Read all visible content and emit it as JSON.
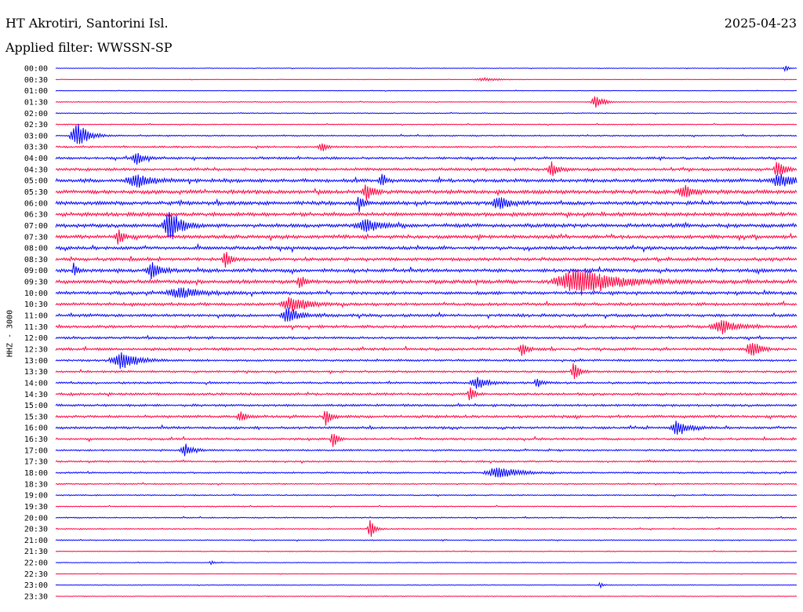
{
  "header": {
    "station": "HT Akrotiri, Santorini Isl.",
    "date": "2025-04-23",
    "filter": "Applied filter: WWSSN-SP"
  },
  "channel_label": "HHZ - 3000",
  "colors": {
    "trace_a": "#0000ff",
    "trace_b": "#ff0040",
    "text": "#000000",
    "background": "#ffffff"
  },
  "chart_data": {
    "type": "line",
    "subtype": "helicorder",
    "rows": [
      "00:00",
      "00:30",
      "01:00",
      "01:30",
      "02:00",
      "02:30",
      "03:00",
      "03:30",
      "04:00",
      "04:30",
      "05:00",
      "05:30",
      "06:00",
      "06:30",
      "07:00",
      "07:30",
      "08:00",
      "08:30",
      "09:00",
      "09:30",
      "10:00",
      "10:30",
      "11:00",
      "11:30",
      "12:00",
      "12:30",
      "13:00",
      "13:30",
      "14:00",
      "14:30",
      "15:00",
      "15:30",
      "16:00",
      "16:30",
      "17:00",
      "17:30",
      "18:00",
      "18:30",
      "19:00",
      "19:30",
      "20:00",
      "20:30",
      "21:00",
      "21:30",
      "22:00",
      "22:30",
      "23:00",
      "23:30"
    ],
    "row_noise_level": [
      0.4,
      0.3,
      0.4,
      0.5,
      0.6,
      0.7,
      0.9,
      1.2,
      1.6,
      1.9,
      2.4,
      2.6,
      2.6,
      2.6,
      2.6,
      2.4,
      2.2,
      2.2,
      2.4,
      2.6,
      2.2,
      2.0,
      2.0,
      1.9,
      1.6,
      1.8,
      1.4,
      1.4,
      1.4,
      1.6,
      1.6,
      1.8,
      1.6,
      1.4,
      1.2,
      1.1,
      1.1,
      0.9,
      0.8,
      0.7,
      0.8,
      0.8,
      0.7,
      0.6,
      0.5,
      0.4,
      0.5,
      0.5
    ],
    "events": [
      {
        "row": "00:00",
        "x": 0.985,
        "amplitude": 5,
        "duration": 0.005
      },
      {
        "row": "00:30",
        "x": 0.58,
        "amplitude": 2,
        "duration": 0.03
      },
      {
        "row": "01:30",
        "x": 0.73,
        "amplitude": 8,
        "duration": 0.015
      },
      {
        "row": "03:00",
        "x": 0.03,
        "amplitude": 18,
        "duration": 0.02
      },
      {
        "row": "03:30",
        "x": 0.36,
        "amplitude": 6,
        "duration": 0.01
      },
      {
        "row": "04:00",
        "x": 0.11,
        "amplitude": 9,
        "duration": 0.015
      },
      {
        "row": "04:30",
        "x": 0.67,
        "amplitude": 10,
        "duration": 0.012
      },
      {
        "row": "04:30",
        "x": 0.975,
        "amplitude": 12,
        "duration": 0.012
      },
      {
        "row": "05:00",
        "x": 0.11,
        "amplitude": 8,
        "duration": 0.03
      },
      {
        "row": "05:00",
        "x": 0.44,
        "amplitude": 8,
        "duration": 0.008
      },
      {
        "row": "05:00",
        "x": 0.98,
        "amplitude": 8,
        "duration": 0.03
      },
      {
        "row": "05:30",
        "x": 0.42,
        "amplitude": 10,
        "duration": 0.012
      },
      {
        "row": "05:30",
        "x": 0.85,
        "amplitude": 7,
        "duration": 0.02
      },
      {
        "row": "06:00",
        "x": 0.41,
        "amplitude": 10,
        "duration": 0.008
      },
      {
        "row": "06:00",
        "x": 0.6,
        "amplitude": 8,
        "duration": 0.02
      },
      {
        "row": "07:00",
        "x": 0.155,
        "amplitude": 22,
        "duration": 0.02
      },
      {
        "row": "07:00",
        "x": 0.42,
        "amplitude": 7,
        "duration": 0.03
      },
      {
        "row": "07:30",
        "x": 0.085,
        "amplitude": 10,
        "duration": 0.01
      },
      {
        "row": "08:30",
        "x": 0.23,
        "amplitude": 12,
        "duration": 0.01
      },
      {
        "row": "09:00",
        "x": 0.13,
        "amplitude": 12,
        "duration": 0.015
      },
      {
        "row": "09:00",
        "x": 0.025,
        "amplitude": 10,
        "duration": 0.005
      },
      {
        "row": "09:30",
        "x": 0.71,
        "amplitude": 16,
        "duration": 0.07
      },
      {
        "row": "09:30",
        "x": 0.33,
        "amplitude": 8,
        "duration": 0.01
      },
      {
        "row": "10:00",
        "x": 0.17,
        "amplitude": 6,
        "duration": 0.04
      },
      {
        "row": "10:30",
        "x": 0.32,
        "amplitude": 10,
        "duration": 0.03
      },
      {
        "row": "11:00",
        "x": 0.315,
        "amplitude": 10,
        "duration": 0.02
      },
      {
        "row": "11:30",
        "x": 0.9,
        "amplitude": 8,
        "duration": 0.03
      },
      {
        "row": "12:30",
        "x": 0.94,
        "amplitude": 12,
        "duration": 0.015
      },
      {
        "row": "12:30",
        "x": 0.63,
        "amplitude": 8,
        "duration": 0.01
      },
      {
        "row": "13:00",
        "x": 0.09,
        "amplitude": 12,
        "duration": 0.03
      },
      {
        "row": "13:30",
        "x": 0.7,
        "amplitude": 12,
        "duration": 0.01
      },
      {
        "row": "14:00",
        "x": 0.57,
        "amplitude": 8,
        "duration": 0.02
      },
      {
        "row": "14:00",
        "x": 0.65,
        "amplitude": 8,
        "duration": 0.008
      },
      {
        "row": "14:30",
        "x": 0.56,
        "amplitude": 10,
        "duration": 0.008
      },
      {
        "row": "15:30",
        "x": 0.365,
        "amplitude": 14,
        "duration": 0.008
      },
      {
        "row": "15:30",
        "x": 0.25,
        "amplitude": 7,
        "duration": 0.01
      },
      {
        "row": "16:00",
        "x": 0.84,
        "amplitude": 9,
        "duration": 0.02
      },
      {
        "row": "16:30",
        "x": 0.375,
        "amplitude": 10,
        "duration": 0.008
      },
      {
        "row": "17:00",
        "x": 0.175,
        "amplitude": 8,
        "duration": 0.015
      },
      {
        "row": "18:00",
        "x": 0.6,
        "amplitude": 7,
        "duration": 0.04
      },
      {
        "row": "20:30",
        "x": 0.425,
        "amplitude": 12,
        "duration": 0.008
      },
      {
        "row": "22:00",
        "x": 0.21,
        "amplitude": 4,
        "duration": 0.005
      },
      {
        "row": "23:00",
        "x": 0.735,
        "amplitude": 4,
        "duration": 0.005
      }
    ]
  }
}
